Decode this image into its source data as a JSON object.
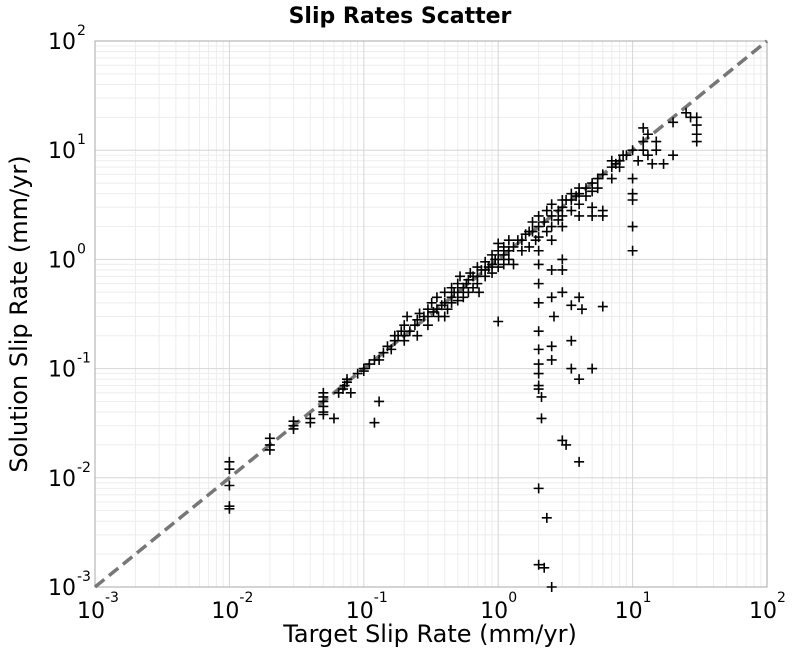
{
  "chart_data": {
    "type": "scatter",
    "title": "Slip Rates Scatter",
    "xlabel": "Target Slip Rate (mm/yr)",
    "ylabel": "Solution Slip Rate (mm/yr)",
    "xscale": "log",
    "yscale": "log",
    "xlim": [
      0.001,
      100
    ],
    "ylim": [
      0.001,
      100
    ],
    "grid": true,
    "marker": "plus",
    "marker_color": "#000000",
    "reference_line": {
      "style": "dashed",
      "color": "#777777",
      "from": [
        0.001,
        0.001
      ],
      "to": [
        100,
        100
      ]
    },
    "x_ticks": [
      {
        "base": "10",
        "exp": "-3",
        "value": 0.001
      },
      {
        "base": "10",
        "exp": "-2",
        "value": 0.01
      },
      {
        "base": "10",
        "exp": "-1",
        "value": 0.1
      },
      {
        "base": "10",
        "exp": "0",
        "value": 1
      },
      {
        "base": "10",
        "exp": "1",
        "value": 10
      },
      {
        "base": "10",
        "exp": "2",
        "value": 100
      }
    ],
    "y_ticks": [
      {
        "base": "10",
        "exp": "-3",
        "value": 0.001
      },
      {
        "base": "10",
        "exp": "-2",
        "value": 0.01
      },
      {
        "base": "10",
        "exp": "-1",
        "value": 0.1
      },
      {
        "base": "10",
        "exp": "0",
        "value": 1
      },
      {
        "base": "10",
        "exp": "1",
        "value": 10
      },
      {
        "base": "10",
        "exp": "2",
        "value": 100
      }
    ],
    "points": [
      [
        0.01,
        0.012
      ],
      [
        0.01,
        0.014
      ],
      [
        0.01,
        0.0085
      ],
      [
        0.01,
        0.0055
      ],
      [
        0.01,
        0.0052
      ],
      [
        0.02,
        0.02
      ],
      [
        0.02,
        0.023
      ],
      [
        0.02,
        0.018
      ],
      [
        0.03,
        0.03
      ],
      [
        0.03,
        0.028
      ],
      [
        0.03,
        0.033
      ],
      [
        0.04,
        0.035
      ],
      [
        0.04,
        0.032
      ],
      [
        0.05,
        0.05
      ],
      [
        0.05,
        0.045
      ],
      [
        0.05,
        0.055
      ],
      [
        0.05,
        0.04
      ],
      [
        0.05,
        0.06
      ],
      [
        0.05,
        0.038
      ],
      [
        0.06,
        0.035
      ],
      [
        0.065,
        0.06
      ],
      [
        0.07,
        0.065
      ],
      [
        0.072,
        0.07
      ],
      [
        0.075,
        0.075
      ],
      [
        0.075,
        0.08
      ],
      [
        0.08,
        0.06
      ],
      [
        0.09,
        0.09
      ],
      [
        0.1,
        0.1
      ],
      [
        0.1,
        0.095
      ],
      [
        0.11,
        0.11
      ],
      [
        0.12,
        0.12
      ],
      [
        0.13,
        0.12
      ],
      [
        0.13,
        0.05
      ],
      [
        0.12,
        0.032
      ],
      [
        0.14,
        0.14
      ],
      [
        0.15,
        0.16
      ],
      [
        0.16,
        0.15
      ],
      [
        0.17,
        0.18
      ],
      [
        0.17,
        0.2
      ],
      [
        0.18,
        0.2
      ],
      [
        0.19,
        0.22
      ],
      [
        0.2,
        0.2
      ],
      [
        0.2,
        0.25
      ],
      [
        0.2,
        0.18
      ],
      [
        0.21,
        0.3
      ],
      [
        0.22,
        0.22
      ],
      [
        0.24,
        0.25
      ],
      [
        0.25,
        0.28
      ],
      [
        0.25,
        0.2
      ],
      [
        0.26,
        0.32
      ],
      [
        0.28,
        0.3
      ],
      [
        0.3,
        0.3
      ],
      [
        0.3,
        0.35
      ],
      [
        0.3,
        0.25
      ],
      [
        0.32,
        0.4
      ],
      [
        0.33,
        0.33
      ],
      [
        0.35,
        0.35
      ],
      [
        0.35,
        0.45
      ],
      [
        0.36,
        0.3
      ],
      [
        0.38,
        0.38
      ],
      [
        0.4,
        0.4
      ],
      [
        0.4,
        0.5
      ],
      [
        0.4,
        0.3
      ],
      [
        0.42,
        0.35
      ],
      [
        0.45,
        0.45
      ],
      [
        0.45,
        0.55
      ],
      [
        0.45,
        0.4
      ],
      [
        0.47,
        0.5
      ],
      [
        0.5,
        0.5
      ],
      [
        0.5,
        0.6
      ],
      [
        0.5,
        0.42
      ],
      [
        0.52,
        0.7
      ],
      [
        0.55,
        0.55
      ],
      [
        0.55,
        0.45
      ],
      [
        0.58,
        0.6
      ],
      [
        0.6,
        0.65
      ],
      [
        0.6,
        0.5
      ],
      [
        0.62,
        0.75
      ],
      [
        0.65,
        0.7
      ],
      [
        0.65,
        0.55
      ],
      [
        0.7,
        0.7
      ],
      [
        0.7,
        0.85
      ],
      [
        0.7,
        0.6
      ],
      [
        0.72,
        0.5
      ],
      [
        0.75,
        0.8
      ],
      [
        0.8,
        0.8
      ],
      [
        0.8,
        0.95
      ],
      [
        0.8,
        0.7
      ],
      [
        0.85,
        0.85
      ],
      [
        0.9,
        0.9
      ],
      [
        0.9,
        1.1
      ],
      [
        0.9,
        0.75
      ],
      [
        0.95,
        1.0
      ],
      [
        1.0,
        1.0
      ],
      [
        1.0,
        1.2
      ],
      [
        1.0,
        0.85
      ],
      [
        1.0,
        1.4
      ],
      [
        1.0,
        0.27
      ],
      [
        1.1,
        1.1
      ],
      [
        1.1,
        1.3
      ],
      [
        1.1,
        0.9
      ],
      [
        1.2,
        1.2
      ],
      [
        1.2,
        1.5
      ],
      [
        1.2,
        1.0
      ],
      [
        1.3,
        1.3
      ],
      [
        1.3,
        0.9
      ],
      [
        1.4,
        1.5
      ],
      [
        1.5,
        1.5
      ],
      [
        1.5,
        1.2
      ],
      [
        1.6,
        1.7
      ],
      [
        1.7,
        1.8
      ],
      [
        1.7,
        1.3
      ],
      [
        1.8,
        1.8
      ],
      [
        1.8,
        2.2
      ],
      [
        1.9,
        1.5
      ],
      [
        2.0,
        2.0
      ],
      [
        2.0,
        2.5
      ],
      [
        2.0,
        1.6
      ],
      [
        2.0,
        1.2
      ],
      [
        2.0,
        0.9
      ],
      [
        2.0,
        0.6
      ],
      [
        2.0,
        0.4
      ],
      [
        2.0,
        0.22
      ],
      [
        2.0,
        0.15
      ],
      [
        2.0,
        0.11
      ],
      [
        2.0,
        0.09
      ],
      [
        2.0,
        0.07
      ],
      [
        2.0,
        0.065
      ],
      [
        2.1,
        0.055
      ],
      [
        2.1,
        0.035
      ],
      [
        2.0,
        0.008
      ],
      [
        2.3,
        0.0043
      ],
      [
        2.0,
        0.0016
      ],
      [
        2.2,
        0.0015
      ],
      [
        2.5,
        0.001
      ],
      [
        2.2,
        2.2
      ],
      [
        2.3,
        2.8
      ],
      [
        2.3,
        1.8
      ],
      [
        2.5,
        2.5
      ],
      [
        2.5,
        3.2
      ],
      [
        2.5,
        2.0
      ],
      [
        2.5,
        1.5
      ],
      [
        2.5,
        0.8
      ],
      [
        2.5,
        0.45
      ],
      [
        2.6,
        0.3
      ],
      [
        2.5,
        0.16
      ],
      [
        2.5,
        0.12
      ],
      [
        2.8,
        2.8
      ],
      [
        2.8,
        2.3
      ],
      [
        3.0,
        3.0
      ],
      [
        3.0,
        3.5
      ],
      [
        3.0,
        2.5
      ],
      [
        3.0,
        2.0
      ],
      [
        3.0,
        1.0
      ],
      [
        3.0,
        0.8
      ],
      [
        3.0,
        0.5
      ],
      [
        3.0,
        0.022
      ],
      [
        3.2,
        0.02
      ],
      [
        3.5,
        0.38
      ],
      [
        3.5,
        0.18
      ],
      [
        3.5,
        0.1
      ],
      [
        3.2,
        3.5
      ],
      [
        3.5,
        3.5
      ],
      [
        3.5,
        4.0
      ],
      [
        3.5,
        2.8
      ],
      [
        3.8,
        3.8
      ],
      [
        4.0,
        4.0
      ],
      [
        4.0,
        4.5
      ],
      [
        4.0,
        3.2
      ],
      [
        4.0,
        2.5
      ],
      [
        4.0,
        0.45
      ],
      [
        4.0,
        0.08
      ],
      [
        4.0,
        0.014
      ],
      [
        4.2,
        0.35
      ],
      [
        4.5,
        4.5
      ],
      [
        4.5,
        3.8
      ],
      [
        5.0,
        5.0
      ],
      [
        5.0,
        4.2
      ],
      [
        5.0,
        3.0
      ],
      [
        5.0,
        2.5
      ],
      [
        5.0,
        0.1
      ],
      [
        5.5,
        5.5
      ],
      [
        5.5,
        4.5
      ],
      [
        6.0,
        6.0
      ],
      [
        6.0,
        2.8
      ],
      [
        6.0,
        2.5
      ],
      [
        6.0,
        0.37
      ],
      [
        7.0,
        7.0
      ],
      [
        7.0,
        8.0
      ],
      [
        7.0,
        5.5
      ],
      [
        7.5,
        7.5
      ],
      [
        8.0,
        8.0
      ],
      [
        8.0,
        7.0
      ],
      [
        8.5,
        9.0
      ],
      [
        9.0,
        9.0
      ],
      [
        10.0,
        10.0
      ],
      [
        10.0,
        5.5
      ],
      [
        10.0,
        4.0
      ],
      [
        10.0,
        3.5
      ],
      [
        10.0,
        2.0
      ],
      [
        10.0,
        1.2
      ],
      [
        11.0,
        8.0
      ],
      [
        12.0,
        12.0
      ],
      [
        12.0,
        10.0
      ],
      [
        12.0,
        16.0
      ],
      [
        13.0,
        14.0
      ],
      [
        13.0,
        9.0
      ],
      [
        14.0,
        7.5
      ],
      [
        15.0,
        12.0
      ],
      [
        15.0,
        10.0
      ],
      [
        17.0,
        7.5
      ],
      [
        20.0,
        9.0
      ],
      [
        20.0,
        18.0
      ],
      [
        25.0,
        22.0
      ],
      [
        27.0,
        20.0
      ],
      [
        30.0,
        20.0
      ],
      [
        30.0,
        17.0
      ],
      [
        30.0,
        14.0
      ],
      [
        30.0,
        12.0
      ]
    ]
  }
}
